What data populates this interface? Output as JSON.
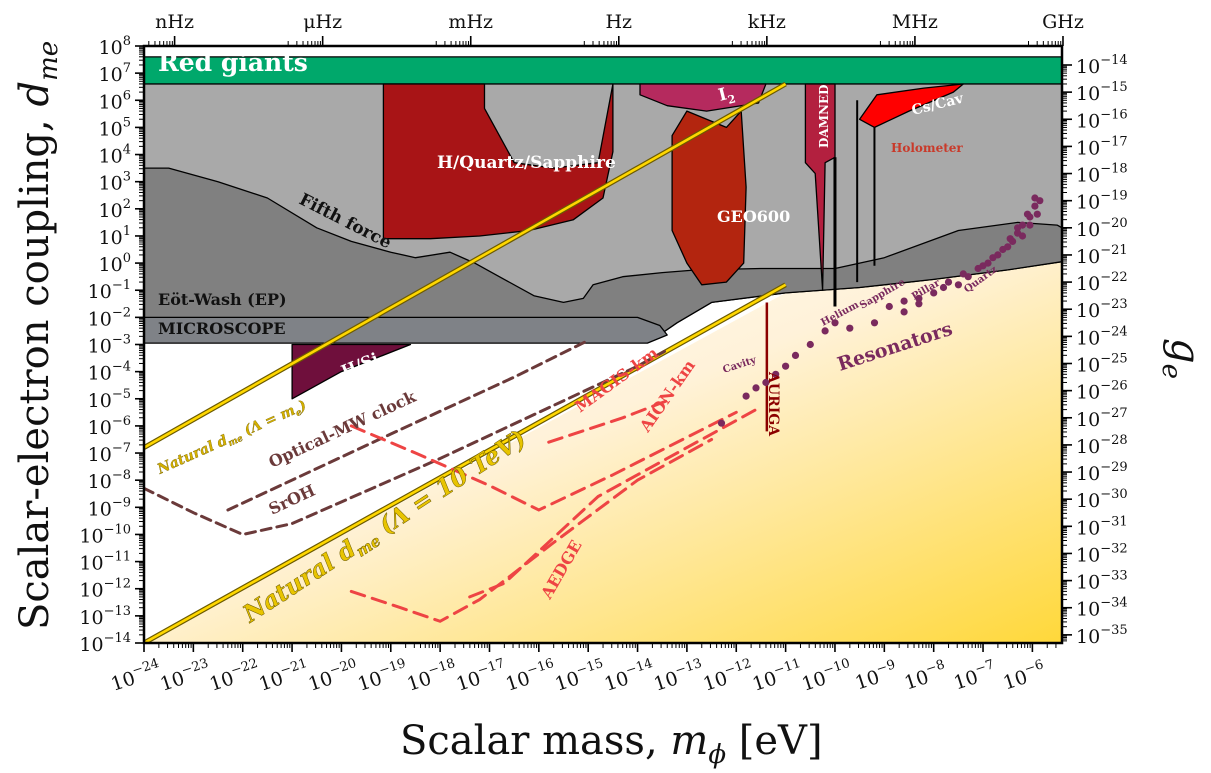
{
  "chart_data": {
    "type": "area",
    "xlabel": "Scalar mass, m_φ [eV]",
    "ylabel": "Scalar-electron coupling, d_me",
    "y2label": "g_e",
    "xscale": "log",
    "yscale": "log",
    "xlim_exp": [
      -24,
      -5.4
    ],
    "ylim_exp": [
      -14,
      8
    ],
    "x_ticks": [
      {
        "exp": -24,
        "label": "10−24"
      },
      {
        "exp": -23,
        "label": "10−23"
      },
      {
        "exp": -22,
        "label": "10−22"
      },
      {
        "exp": -21,
        "label": "10−21"
      },
      {
        "exp": -20,
        "label": "10−20"
      },
      {
        "exp": -19,
        "label": "10−19"
      },
      {
        "exp": -18,
        "label": "10−18"
      },
      {
        "exp": -17,
        "label": "10−17"
      },
      {
        "exp": -16,
        "label": "10−16"
      },
      {
        "exp": -15,
        "label": "10−15"
      },
      {
        "exp": -14,
        "label": "10−14"
      },
      {
        "exp": -13,
        "label": "10−13"
      },
      {
        "exp": -12,
        "label": "10−12"
      },
      {
        "exp": -11,
        "label": "10−11"
      },
      {
        "exp": -10,
        "label": "10−10"
      },
      {
        "exp": -9,
        "label": "10−9"
      },
      {
        "exp": -8,
        "label": "10−8"
      },
      {
        "exp": -7,
        "label": "10−7"
      },
      {
        "exp": -6,
        "label": "10−6"
      }
    ],
    "y_ticks": [
      {
        "exp": 8,
        "label": "108"
      },
      {
        "exp": 7,
        "label": "107"
      },
      {
        "exp": 6,
        "label": "106"
      },
      {
        "exp": 5,
        "label": "105"
      },
      {
        "exp": 4,
        "label": "104"
      },
      {
        "exp": 3,
        "label": "103"
      },
      {
        "exp": 2,
        "label": "102"
      },
      {
        "exp": 1,
        "label": "101"
      },
      {
        "exp": 0,
        "label": "100"
      },
      {
        "exp": -1,
        "label": "10−1"
      },
      {
        "exp": -2,
        "label": "10−2"
      },
      {
        "exp": -3,
        "label": "10−3"
      },
      {
        "exp": -4,
        "label": "10−4"
      },
      {
        "exp": -5,
        "label": "10−5"
      },
      {
        "exp": -6,
        "label": "10−6"
      },
      {
        "exp": -7,
        "label": "10−7"
      },
      {
        "exp": -8,
        "label": "10−8"
      },
      {
        "exp": -9,
        "label": "10−9"
      },
      {
        "exp": -10,
        "label": "10−10"
      },
      {
        "exp": -11,
        "label": "10−11"
      },
      {
        "exp": -12,
        "label": "10−12"
      },
      {
        "exp": -13,
        "label": "10−13"
      },
      {
        "exp": -14,
        "label": "10−14"
      }
    ],
    "y2_ticks": [
      {
        "exp": 7.3,
        "label": "10−14"
      },
      {
        "exp": 6.3,
        "label": "10−15"
      },
      {
        "exp": 5.3,
        "label": "10−16"
      },
      {
        "exp": 4.3,
        "label": "10−17"
      },
      {
        "exp": 3.3,
        "label": "10−18"
      },
      {
        "exp": 2.3,
        "label": "10−19"
      },
      {
        "exp": 1.3,
        "label": "10−20"
      },
      {
        "exp": 0.3,
        "label": "10−21"
      },
      {
        "exp": -0.7,
        "label": "10−22"
      },
      {
        "exp": -1.7,
        "label": "10−23"
      },
      {
        "exp": -2.7,
        "label": "10−24"
      },
      {
        "exp": -3.7,
        "label": "10−25"
      },
      {
        "exp": -4.7,
        "label": "10−26"
      },
      {
        "exp": -5.7,
        "label": "10−27"
      },
      {
        "exp": -6.7,
        "label": "10−28"
      },
      {
        "exp": -7.7,
        "label": "10−29"
      },
      {
        "exp": -8.7,
        "label": "10−30"
      },
      {
        "exp": -9.7,
        "label": "10−31"
      },
      {
        "exp": -10.7,
        "label": "10−32"
      },
      {
        "exp": -11.7,
        "label": "10−33"
      },
      {
        "exp": -12.7,
        "label": "10−34"
      },
      {
        "exp": -13.7,
        "label": "10−35"
      }
    ],
    "freq_ticks": [
      {
        "exp": -23.38,
        "label": "nHz"
      },
      {
        "exp": -20.38,
        "label": "μHz"
      },
      {
        "exp": -17.38,
        "label": "mHz"
      },
      {
        "exp": -14.38,
        "label": "Hz"
      },
      {
        "exp": -11.38,
        "label": "kHz"
      },
      {
        "exp": -8.38,
        "label": "MHz"
      },
      {
        "exp": -5.38,
        "label": "GHz"
      }
    ],
    "colors": {
      "red_giants": "#00a86b",
      "fifth_force": "#a9a9a9",
      "eot_wash": "#808080",
      "microscope": "#7f8287",
      "hqs": "#a81416",
      "geo600": "#b3250f",
      "i2": "#b52a5e",
      "damned": "#b3203f",
      "cscav": "#ff0000",
      "hsi": "#6f0f3c",
      "natural": "#ffd700",
      "clock": "#6b3a3a",
      "atom": "#ee4444",
      "resonator": "#7a2a5e",
      "auriga": "#8b0000",
      "projection_fill": "#ffd83a"
    },
    "bounds": [
      {
        "name": "Red giants",
        "color_key": "red_giants",
        "points": [
          [
            -24,
            7.6
          ],
          [
            -5.4,
            7.6
          ],
          [
            -5.4,
            6.6
          ],
          [
            -24,
            6.6
          ]
        ]
      },
      {
        "name": "Fifth force",
        "color_key": "fifth_force",
        "points": [
          [
            -24,
            6.6
          ],
          [
            -5.4,
            6.6
          ],
          [
            -5.4,
            0.05
          ],
          [
            -6.5,
            -0.25
          ],
          [
            -8,
            -0.6
          ],
          [
            -9.5,
            -0.9
          ],
          [
            -11,
            -1.1
          ],
          [
            -12.5,
            -1.45
          ],
          [
            -13.2,
            -2.2
          ],
          [
            -13.6,
            -2.7
          ],
          [
            -24,
            -2.7
          ]
        ]
      },
      {
        "name": "Eöt-Wash (EP)",
        "color_key": "eot_wash",
        "points": [
          [
            -24,
            3.5
          ],
          [
            -23.5,
            3.5
          ],
          [
            -22.5,
            3.0
          ],
          [
            -21.5,
            2.4
          ],
          [
            -20.5,
            1.3
          ],
          [
            -19.8,
            0.8
          ],
          [
            -19,
            0.4
          ],
          [
            -18.5,
            0.2
          ],
          [
            -17.8,
            0.4
          ],
          [
            -17.3,
            0.0
          ],
          [
            -16.7,
            -0.6
          ],
          [
            -16.1,
            -1.2
          ],
          [
            -15.5,
            -1.45
          ],
          [
            -15.1,
            -1.3
          ],
          [
            -14.9,
            -0.8
          ],
          [
            -14.3,
            -0.5
          ],
          [
            -13.5,
            -0.35
          ],
          [
            -12.8,
            -0.25
          ],
          [
            -11.5,
            -0.2
          ],
          [
            -10,
            -0.2
          ],
          [
            -9,
            0.2
          ],
          [
            -7.5,
            1.2
          ],
          [
            -6.3,
            1.5
          ],
          [
            -5.5,
            1.4
          ],
          [
            -5.4,
            1.3
          ],
          [
            -5.4,
            0.05
          ],
          [
            -6.5,
            -0.25
          ],
          [
            -8,
            -0.6
          ],
          [
            -9.5,
            -0.9
          ],
          [
            -11,
            -1.1
          ],
          [
            -12.5,
            -1.45
          ],
          [
            -13.2,
            -2.2
          ],
          [
            -13.6,
            -2.7
          ],
          [
            -24,
            -2.7
          ]
        ]
      },
      {
        "name": "MICROSCOPE",
        "color_key": "microscope",
        "points": [
          [
            -24,
            -2.0
          ],
          [
            -14.0,
            -2.0
          ],
          [
            -13.55,
            -2.3
          ],
          [
            -13.4,
            -2.65
          ],
          [
            -13.8,
            -2.95
          ],
          [
            -24,
            -2.95
          ]
        ]
      },
      {
        "name": "H/Quartz/Sapphire",
        "color_key": "hqs",
        "points": [
          [
            -19.15,
            6.6
          ],
          [
            -17.1,
            6.6
          ],
          [
            -17.1,
            5.7
          ],
          [
            -16.5,
            3.7
          ],
          [
            -15.7,
            3.5
          ],
          [
            -14.8,
            3.7
          ],
          [
            -14.5,
            6.6
          ],
          [
            -14.5,
            4.1
          ],
          [
            -14.7,
            2.4
          ],
          [
            -15.3,
            1.6
          ],
          [
            -16.2,
            1.2
          ],
          [
            -17.2,
            1.0
          ],
          [
            -18.2,
            0.9
          ],
          [
            -19.15,
            0.9
          ]
        ]
      },
      {
        "name": "GEO600",
        "color_key": "geo600",
        "points": [
          [
            -13.0,
            5.6
          ],
          [
            -12.2,
            5.0
          ],
          [
            -11.9,
            5.6
          ],
          [
            -11.8,
            2.8
          ],
          [
            -11.85,
            0.0
          ],
          [
            -12.2,
            -0.7
          ],
          [
            -12.7,
            -0.8
          ],
          [
            -13.0,
            0.0
          ],
          [
            -13.3,
            1.2
          ],
          [
            -13.3,
            4.7
          ]
        ]
      },
      {
        "name": "I2",
        "color_key": "i2",
        "points": [
          [
            -13.95,
            6.6
          ],
          [
            -11.4,
            6.6
          ],
          [
            -11.55,
            5.9
          ],
          [
            -12.6,
            5.6
          ],
          [
            -13.4,
            5.8
          ],
          [
            -13.95,
            6.2
          ]
        ]
      },
      {
        "name": "DAMNED",
        "color_key": "damned",
        "points": [
          [
            -10.6,
            6.6
          ],
          [
            -10.0,
            6.6
          ],
          [
            -10.0,
            3.9
          ],
          [
            -10.2,
            3.7
          ],
          [
            -10.25,
            -1.0
          ],
          [
            -10.4,
            3.3
          ],
          [
            -10.6,
            3.7
          ]
        ]
      },
      {
        "name": "Cs/Cav",
        "color_key": "cscav",
        "points": [
          [
            -9.5,
            5.3
          ],
          [
            -9.15,
            6.2
          ],
          [
            -8.2,
            6.45
          ],
          [
            -7.4,
            6.6
          ],
          [
            -7.6,
            6.3
          ],
          [
            -8.5,
            5.6
          ],
          [
            -9.2,
            5.0
          ]
        ]
      },
      {
        "name": "H/Si",
        "color_key": "hsi",
        "points": [
          [
            -21.0,
            -3.0
          ],
          [
            -18.6,
            -3.0
          ],
          [
            -19.3,
            -3.5
          ],
          [
            -20.0,
            -4.0
          ],
          [
            -20.6,
            -4.6
          ],
          [
            -21.0,
            -5.0
          ]
        ]
      }
    ],
    "natural_lines": [
      {
        "name": "Natural d_me (Λ = m_e)",
        "points": [
          [
            -24,
            -6.8
          ],
          [
            -11.0,
            6.6
          ]
        ]
      },
      {
        "name": "Natural d_me (Λ = 10 TeV)",
        "points": [
          [
            -24,
            -14.0
          ],
          [
            -11.0,
            -0.8
          ]
        ]
      }
    ],
    "projections": [
      {
        "name": "Optical-MW clock",
        "color_key": "clock",
        "dash": "10,6",
        "points": [
          [
            -22.3,
            -9.1
          ],
          [
            -19.0,
            -6.3
          ],
          [
            -16.5,
            -4.2
          ],
          [
            -15.0,
            -2.85
          ]
        ]
      },
      {
        "name": "SrOH",
        "color_key": "clock",
        "dash": "10,6",
        "points": [
          [
            -24,
            -8.3
          ],
          [
            -23.0,
            -9.2
          ],
          [
            -22.0,
            -10.0
          ],
          [
            -21.0,
            -9.6
          ],
          [
            -18.0,
            -7.2
          ],
          [
            -14.0,
            -3.8
          ],
          [
            -13.4,
            -3.2
          ]
        ]
      },
      {
        "name": "MAGIS-km",
        "color_key": "atom",
        "dash": "14,8",
        "points": [
          [
            -19.8,
            -6.0
          ],
          [
            -18.5,
            -7.0
          ],
          [
            -17.0,
            -8.2
          ],
          [
            -16.0,
            -9.1
          ],
          [
            -14.5,
            -7.8
          ],
          [
            -12.0,
            -5.5
          ]
        ]
      },
      {
        "name": "MAGIS-km short",
        "color_key": "atom",
        "dash": "14,8",
        "points": [
          [
            -15.8,
            -6.6
          ],
          [
            -14.3,
            -5.7
          ],
          [
            -13.3,
            -5.0
          ]
        ]
      },
      {
        "name": "AION-km",
        "color_key": "atom",
        "dash": "14,8",
        "points": [
          [
            -17.4,
            -12.3
          ],
          [
            -16.7,
            -11.8
          ],
          [
            -14.8,
            -8.6
          ],
          [
            -13.0,
            -6.8
          ],
          [
            -11.5,
            -5.3
          ]
        ]
      },
      {
        "name": "AEDGE",
        "color_key": "atom",
        "dash": "14,8",
        "points": [
          [
            -19.8,
            -12.1
          ],
          [
            -18.8,
            -12.7
          ],
          [
            -18.0,
            -13.2
          ],
          [
            -17.4,
            -12.6
          ],
          [
            -17.2,
            -12.4
          ],
          [
            -15.7,
            -10.3
          ],
          [
            -14.0,
            -8.0
          ],
          [
            -12.5,
            -6.5
          ]
        ]
      }
    ],
    "resonator_points": [
      [
        -12.3,
        -5.9
      ],
      [
        -11.8,
        -4.9
      ],
      [
        -11.6,
        -4.6
      ],
      [
        -11.4,
        -4.4
      ],
      [
        -11.2,
        -4.1
      ],
      [
        -11.0,
        -3.8
      ],
      [
        -10.8,
        -3.4
      ],
      [
        -10.5,
        -3.0
      ],
      [
        -10.2,
        -2.5
      ],
      [
        -10.0,
        -2.2
      ],
      [
        -9.7,
        -2.4
      ],
      [
        -9.2,
        -2.2
      ],
      [
        -8.9,
        -1.6
      ],
      [
        -8.6,
        -1.4
      ],
      [
        -8.3,
        -1.3
      ],
      [
        -8.0,
        -1.1
      ],
      [
        -7.8,
        -0.9
      ],
      [
        -7.7,
        -0.7
      ],
      [
        -7.4,
        -0.4
      ],
      [
        -7.1,
        -0.2
      ],
      [
        -6.9,
        0.0
      ],
      [
        -6.7,
        0.3
      ],
      [
        -6.5,
        0.6
      ],
      [
        -6.4,
        0.8
      ],
      [
        -6.3,
        1.1
      ],
      [
        -6.2,
        1.4
      ],
      [
        -6.05,
        1.7
      ],
      [
        -5.95,
        2.1
      ],
      [
        -5.85,
        2.3
      ],
      [
        -7.5,
        -0.8
      ],
      [
        -7.3,
        -0.5
      ],
      [
        -7.0,
        -0.1
      ],
      [
        -6.8,
        0.2
      ],
      [
        -6.6,
        0.5
      ],
      [
        -6.45,
        0.9
      ],
      [
        -6.3,
        1.3
      ],
      [
        -6.1,
        1.8
      ],
      [
        -5.95,
        2.4
      ],
      [
        -6.2,
        1.0
      ],
      [
        -6.05,
        1.4
      ],
      [
        -5.9,
        1.8
      ],
      [
        -8.6,
        -1.8
      ],
      [
        -8.3,
        -1.5
      ]
    ],
    "auriga": {
      "x": -11.38,
      "y_top": -1.45,
      "y_bottom": -6.2
    },
    "labels": {
      "red_giants": "Red giants",
      "fifth_force": "Fifth force",
      "eot_wash": "Eöt-Wash (EP)",
      "microscope": "MICROSCOPE",
      "hqs": "H/Quartz/Sapphire",
      "geo600": "GEO600",
      "i2": "I",
      "i2_sub": "2",
      "damned": "DAMNED",
      "cscav": "Cs/Cav",
      "holometer": "Holometer",
      "hsi": "H/Si",
      "natural_me_prefix": "Natural d",
      "natural_me_sub": "me",
      "natural_me_suffix": " (Λ = m",
      "natural_me_sub2": "e",
      "natural_me_close": ")",
      "natural_tev_prefix": "Natural d",
      "natural_tev_sub": "me",
      "natural_tev_suffix": " (Λ = 10 TeV)",
      "optical_mw": "Optical-MW clock",
      "sroh": "SrOH",
      "magis": "MAGIS-km",
      "aion": "AION-km",
      "aedge": "AEDGE",
      "auriga": "AURIGA",
      "resonators": "Resonators",
      "cavity": "Cavity",
      "helium": "Helium",
      "sapphire": "Sapphire",
      "pillar": "Pillar",
      "quartz": "Quartz"
    }
  },
  "axis": {
    "xlabel_main": "Scalar mass, ",
    "xlabel_sym": "m",
    "xlabel_sub": "ϕ",
    "xlabel_unit": " [eV]",
    "ylabel_main": "Scalar-electron coupling, ",
    "ylabel_sym": "d",
    "ylabel_sub": "me",
    "y2label_sym": "g",
    "y2label_sub": "e"
  }
}
